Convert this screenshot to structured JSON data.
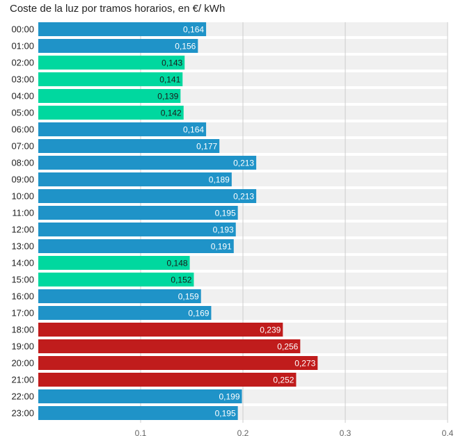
{
  "chart_data": {
    "type": "bar",
    "orientation": "horizontal",
    "title": "Coste de la luz por tramos horarios, en €/ kWh",
    "categories": [
      "00:00",
      "01:00",
      "02:00",
      "03:00",
      "04:00",
      "05:00",
      "06:00",
      "07:00",
      "08:00",
      "09:00",
      "10:00",
      "11:00",
      "12:00",
      "13:00",
      "14:00",
      "15:00",
      "16:00",
      "17:00",
      "18:00",
      "19:00",
      "20:00",
      "21:00",
      "22:00",
      "23:00"
    ],
    "values": [
      0.164,
      0.156,
      0.143,
      0.141,
      0.139,
      0.142,
      0.164,
      0.177,
      0.213,
      0.189,
      0.213,
      0.195,
      0.193,
      0.191,
      0.148,
      0.152,
      0.159,
      0.169,
      0.239,
      0.256,
      0.273,
      0.252,
      0.199,
      0.195
    ],
    "value_labels": [
      "0,164",
      "0,156",
      "0,143",
      "0,141",
      "0,139",
      "0,142",
      "0,164",
      "0,177",
      "0,213",
      "0,189",
      "0,213",
      "0,195",
      "0,193",
      "0,191",
      "0,148",
      "0,152",
      "0,159",
      "0,169",
      "0,239",
      "0,256",
      "0,273",
      "0,252",
      "0,199",
      "0,195"
    ],
    "bar_color_class": [
      "mid",
      "mid",
      "low",
      "low",
      "low",
      "low",
      "mid",
      "mid",
      "mid",
      "mid",
      "mid",
      "mid",
      "mid",
      "mid",
      "low",
      "low",
      "mid",
      "mid",
      "high",
      "high",
      "high",
      "high",
      "mid",
      "mid"
    ],
    "colors": {
      "low": "#00d89f",
      "mid": "#1f93c8",
      "high": "#c01c1c",
      "track": "#f0f0f0",
      "grid": "#cccccc"
    },
    "xlim": [
      0,
      0.4
    ],
    "x_ticks": [
      0.1,
      0.2,
      0.3,
      0.4
    ],
    "x_tick_labels": [
      "0,1",
      "0,2",
      "0,3",
      "0,4"
    ],
    "grid": true,
    "legend": "none"
  }
}
